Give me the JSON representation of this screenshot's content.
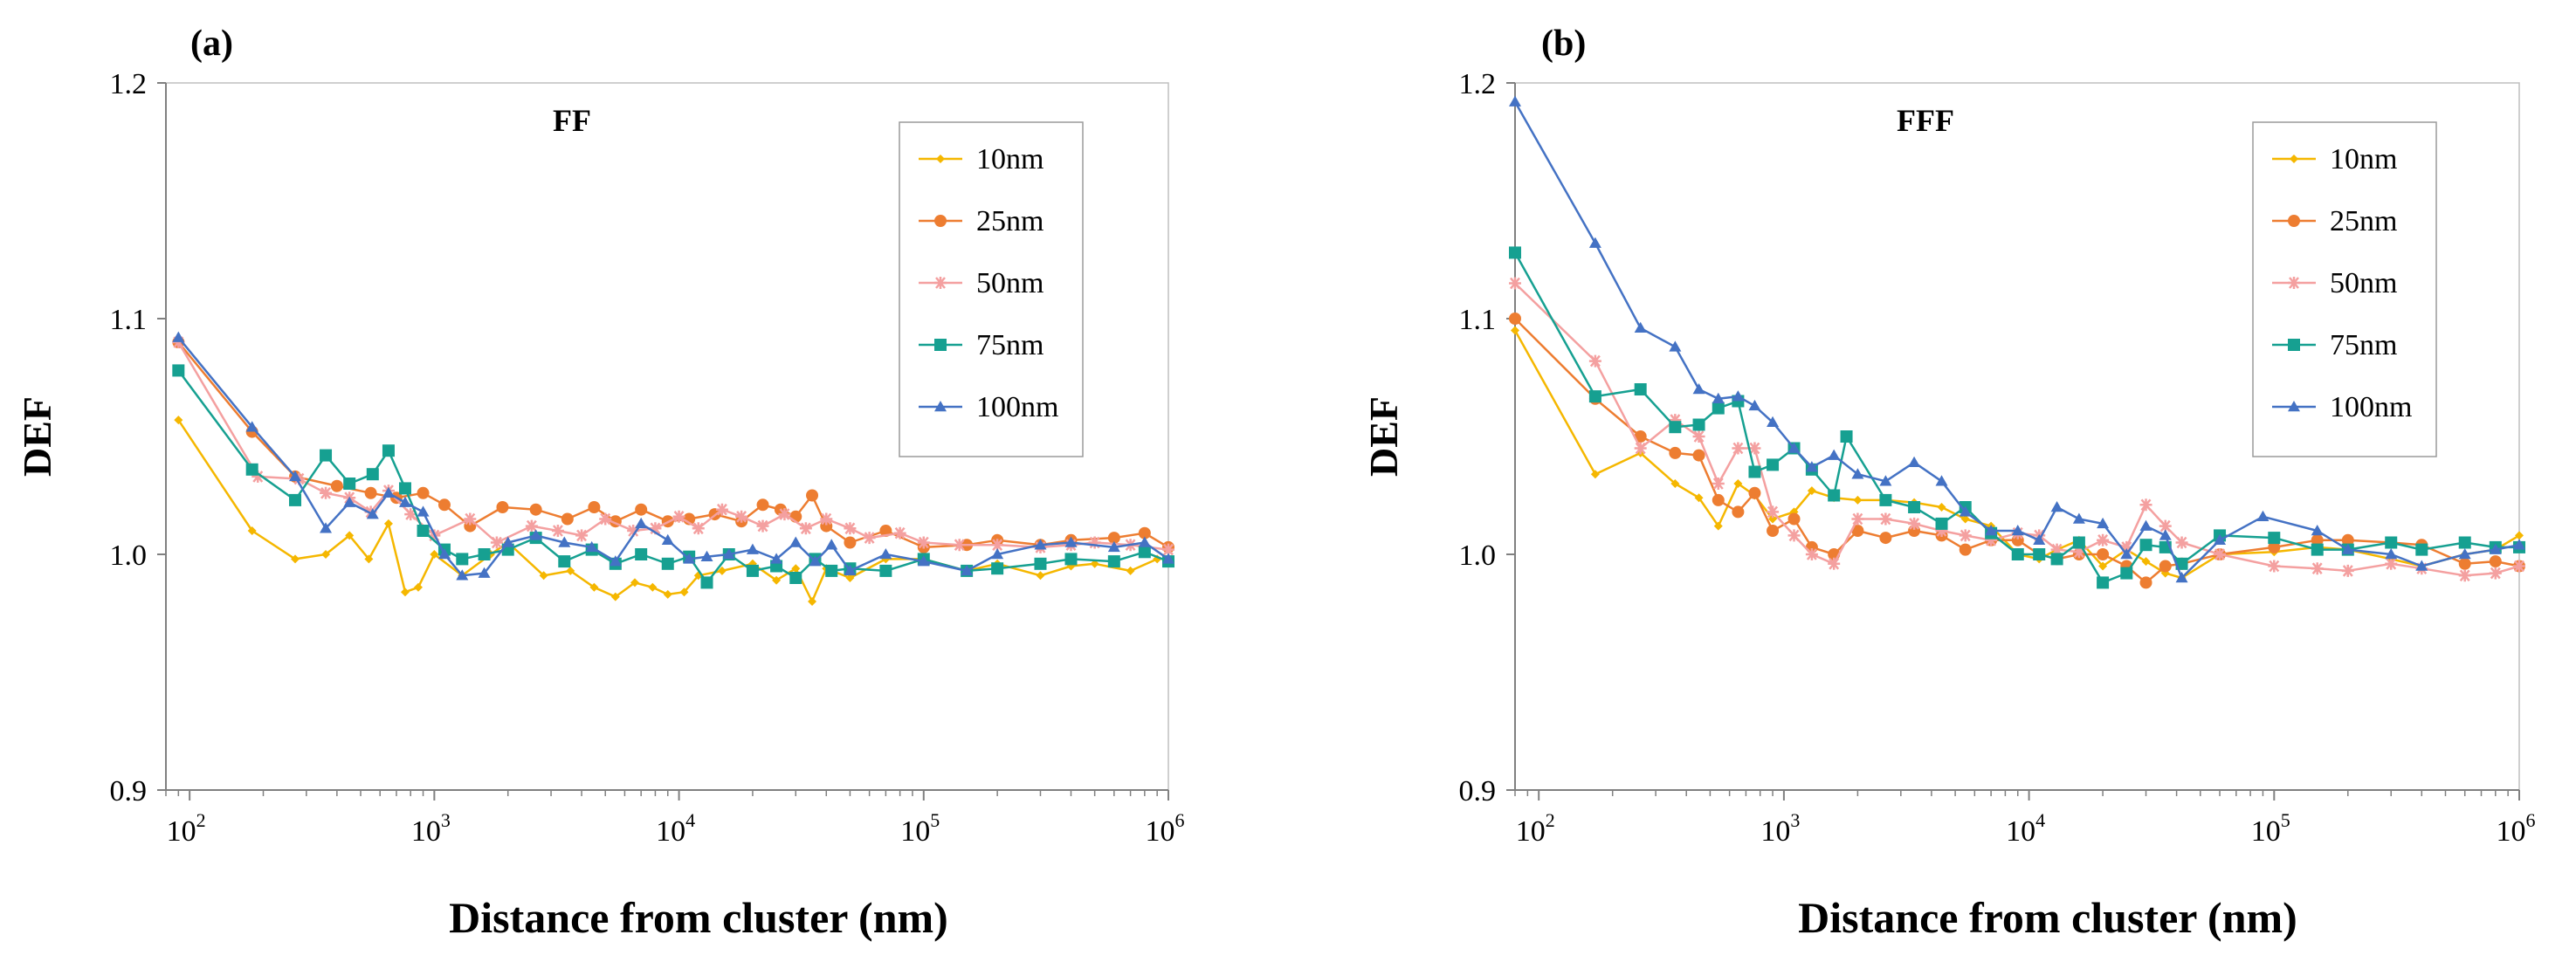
{
  "chart_data": [
    {
      "type": "line",
      "panel_label": "(a)",
      "title": "FF",
      "xlabel": "Distance from cluster (nm)",
      "ylabel": "DEF",
      "xscale": "log",
      "xlim": [
        80,
        1000000
      ],
      "ylim": [
        0.9,
        1.2
      ],
      "yticks": [
        "0.9",
        "1.0",
        "1.1",
        "1.2"
      ],
      "xticks": [
        {
          "base": "10",
          "exp": "2"
        },
        {
          "base": "10",
          "exp": "3"
        },
        {
          "base": "10",
          "exp": "4"
        },
        {
          "base": "10",
          "exp": "5"
        },
        {
          "base": "10",
          "exp": "6"
        }
      ],
      "legend_position": "top-right",
      "series": [
        {
          "name": "10nm",
          "color": "#f5b700",
          "marker": "diamond",
          "x": [
            90,
            180,
            270,
            360,
            450,
            540,
            650,
            760,
            860,
            1000,
            1300,
            1700,
            2000,
            2800,
            3600,
            4500,
            5500,
            6600,
            7800,
            9000,
            10500,
            12000,
            15000,
            20000,
            25000,
            30000,
            35000,
            40000,
            50000,
            70000,
            100000,
            150000,
            200000,
            300000,
            400000,
            500000,
            700000,
            900000
          ],
          "y": [
            1.057,
            1.01,
            0.998,
            1.0,
            1.008,
            0.998,
            1.013,
            0.984,
            0.986,
            1.0,
            0.991,
            1.0,
            1.005,
            0.991,
            0.993,
            0.986,
            0.982,
            0.988,
            0.986,
            0.983,
            0.984,
            0.991,
            0.993,
            0.996,
            0.989,
            0.994,
            0.98,
            0.994,
            0.99,
            0.998,
            0.998,
            0.993,
            0.996,
            0.991,
            0.995,
            0.996,
            0.993,
            0.998
          ]
        },
        {
          "name": "25nm",
          "color": "#ed7d31",
          "marker": "circle",
          "x": [
            90,
            180,
            270,
            400,
            550,
            700,
            900,
            1100,
            1400,
            1900,
            2600,
            3500,
            4500,
            5500,
            7000,
            9000,
            11000,
            14000,
            18000,
            22000,
            26000,
            30000,
            35000,
            40000,
            50000,
            70000,
            100000,
            150000,
            200000,
            300000,
            400000,
            600000,
            800000,
            1000000
          ],
          "y": [
            1.09,
            1.052,
            1.033,
            1.029,
            1.026,
            1.024,
            1.026,
            1.021,
            1.012,
            1.02,
            1.019,
            1.015,
            1.02,
            1.014,
            1.019,
            1.014,
            1.015,
            1.017,
            1.014,
            1.021,
            1.019,
            1.016,
            1.025,
            1.012,
            1.005,
            1.01,
            1.003,
            1.004,
            1.006,
            1.004,
            1.006,
            1.007,
            1.009,
            1.003
          ]
        },
        {
          "name": "50nm",
          "color": "#f4a0a0",
          "marker": "star",
          "x": [
            90,
            190,
            280,
            360,
            450,
            550,
            650,
            800,
            1000,
            1400,
            1800,
            2500,
            3200,
            4000,
            5000,
            6500,
            8000,
            10000,
            12000,
            15000,
            18000,
            22000,
            27000,
            33000,
            40000,
            50000,
            60000,
            80000,
            100000,
            140000,
            200000,
            300000,
            400000,
            500000,
            700000,
            1000000
          ],
          "y": [
            1.09,
            1.033,
            1.032,
            1.026,
            1.024,
            1.018,
            1.027,
            1.017,
            1.008,
            1.015,
            1.005,
            1.012,
            1.01,
            1.008,
            1.015,
            1.01,
            1.011,
            1.016,
            1.011,
            1.019,
            1.016,
            1.012,
            1.017,
            1.011,
            1.015,
            1.011,
            1.007,
            1.009,
            1.005,
            1.004,
            1.004,
            1.003,
            1.004,
            1.005,
            1.004,
            1.002
          ]
        },
        {
          "name": "75nm",
          "color": "#16a091",
          "marker": "square",
          "x": [
            90,
            180,
            270,
            360,
            450,
            560,
            650,
            760,
            900,
            1100,
            1300,
            1600,
            2000,
            2600,
            3400,
            4400,
            5500,
            7000,
            9000,
            11000,
            13000,
            16000,
            20000,
            25000,
            30000,
            36000,
            42000,
            50000,
            70000,
            100000,
            150000,
            200000,
            300000,
            400000,
            600000,
            800000,
            1000000
          ],
          "y": [
            1.078,
            1.036,
            1.023,
            1.042,
            1.03,
            1.034,
            1.044,
            1.028,
            1.01,
            1.002,
            0.998,
            1.0,
            1.002,
            1.007,
            0.997,
            1.002,
            0.996,
            1.0,
            0.996,
            0.999,
            0.988,
            1.0,
            0.993,
            0.995,
            0.99,
            0.998,
            0.993,
            0.994,
            0.993,
            0.998,
            0.993,
            0.994,
            0.996,
            0.998,
            0.997,
            1.001,
            0.997
          ]
        },
        {
          "name": "100nm",
          "color": "#4472c4",
          "marker": "triangle",
          "x": [
            90,
            180,
            270,
            360,
            450,
            560,
            650,
            760,
            900,
            1100,
            1300,
            1600,
            2000,
            2600,
            3400,
            4400,
            5500,
            7000,
            9000,
            11000,
            13000,
            16000,
            20000,
            25000,
            30000,
            36000,
            42000,
            50000,
            70000,
            100000,
            150000,
            200000,
            300000,
            400000,
            600000,
            800000,
            1000000
          ],
          "y": [
            1.092,
            1.054,
            1.033,
            1.011,
            1.022,
            1.017,
            1.026,
            1.022,
            1.018,
            1.0,
            0.991,
            0.992,
            1.005,
            1.008,
            1.005,
            1.003,
            0.997,
            1.013,
            1.006,
            0.998,
            0.999,
            1.0,
            1.002,
            0.998,
            1.005,
            0.997,
            1.004,
            0.993,
            1.0,
            0.997,
            0.993,
            1.0,
            1.004,
            1.005,
            1.003,
            1.005,
            0.998
          ]
        }
      ]
    },
    {
      "type": "line",
      "panel_label": "(b)",
      "title": "FFF",
      "xlabel": "Distance from cluster (nm)",
      "ylabel": "DEF",
      "xscale": "log",
      "xlim": [
        80,
        1000000
      ],
      "ylim": [
        0.9,
        1.2
      ],
      "yticks": [
        "0.9",
        "1.0",
        "1.1",
        "1.2"
      ],
      "xticks": [
        {
          "base": "10",
          "exp": "2"
        },
        {
          "base": "10",
          "exp": "3"
        },
        {
          "base": "10",
          "exp": "4"
        },
        {
          "base": "10",
          "exp": "5"
        },
        {
          "base": "10",
          "exp": "6"
        }
      ],
      "legend_position": "top-right",
      "series": [
        {
          "name": "10nm",
          "color": "#f5b700",
          "marker": "diamond",
          "x": [
            80,
            170,
            260,
            360,
            450,
            540,
            650,
            760,
            900,
            1100,
            1300,
            1600,
            2000,
            2600,
            3400,
            4400,
            5500,
            7000,
            9000,
            11000,
            13000,
            16000,
            20000,
            25000,
            30000,
            36000,
            42000,
            60000,
            100000,
            150000,
            200000,
            300000,
            400000,
            600000,
            800000,
            1000000
          ],
          "y": [
            1.095,
            1.034,
            1.043,
            1.03,
            1.024,
            1.012,
            1.03,
            1.025,
            1.015,
            1.018,
            1.027,
            1.024,
            1.023,
            1.023,
            1.022,
            1.02,
            1.015,
            1.012,
            1.0,
            0.998,
            1.002,
            1.006,
            0.995,
            1.002,
            0.997,
            0.992,
            0.99,
            1.0,
            1.001,
            1.003,
            1.002,
            0.998,
            0.995,
            1.0,
            1.002,
            1.008
          ]
        },
        {
          "name": "25nm",
          "color": "#ed7d31",
          "marker": "circle",
          "x": [
            80,
            170,
            260,
            360,
            450,
            540,
            650,
            760,
            900,
            1100,
            1300,
            1600,
            2000,
            2600,
            3400,
            4400,
            5500,
            7000,
            9000,
            11000,
            13000,
            16000,
            20000,
            25000,
            30000,
            36000,
            42000,
            60000,
            100000,
            150000,
            200000,
            300000,
            400000,
            600000,
            800000,
            1000000
          ],
          "y": [
            1.1,
            1.066,
            1.05,
            1.043,
            1.042,
            1.023,
            1.018,
            1.026,
            1.01,
            1.015,
            1.003,
            1.0,
            1.01,
            1.007,
            1.01,
            1.008,
            1.002,
            1.006,
            1.006,
            1.0,
            0.998,
            1.0,
            1.0,
            0.995,
            0.988,
            0.995,
            0.996,
            1.0,
            1.003,
            1.006,
            1.006,
            1.005,
            1.004,
            0.996,
            0.997,
            0.995
          ]
        },
        {
          "name": "50nm",
          "color": "#f4a0a0",
          "marker": "star",
          "x": [
            80,
            170,
            260,
            360,
            450,
            540,
            650,
            760,
            900,
            1100,
            1300,
            1600,
            2000,
            2600,
            3400,
            4400,
            5500,
            7000,
            9000,
            11000,
            13000,
            16000,
            20000,
            25000,
            30000,
            36000,
            42000,
            60000,
            100000,
            150000,
            200000,
            300000,
            400000,
            600000,
            800000,
            1000000
          ],
          "y": [
            1.115,
            1.082,
            1.045,
            1.057,
            1.05,
            1.03,
            1.045,
            1.045,
            1.018,
            1.008,
            1.0,
            0.996,
            1.015,
            1.015,
            1.013,
            1.01,
            1.008,
            1.006,
            1.009,
            1.008,
            1.002,
            1.001,
            1.006,
            1.003,
            1.021,
            1.012,
            1.005,
            1.0,
            0.995,
            0.994,
            0.993,
            0.996,
            0.994,
            0.991,
            0.992,
            0.995
          ]
        },
        {
          "name": "75nm",
          "color": "#16a091",
          "marker": "square",
          "x": [
            80,
            170,
            260,
            360,
            450,
            540,
            650,
            760,
            900,
            1100,
            1300,
            1600,
            1800,
            2600,
            3400,
            4400,
            5500,
            7000,
            9000,
            11000,
            13000,
            16000,
            20000,
            25000,
            30000,
            36000,
            42000,
            60000,
            100000,
            150000,
            200000,
            300000,
            400000,
            600000,
            800000,
            1000000
          ],
          "y": [
            1.128,
            1.067,
            1.07,
            1.054,
            1.055,
            1.062,
            1.065,
            1.035,
            1.038,
            1.045,
            1.036,
            1.025,
            1.05,
            1.023,
            1.02,
            1.013,
            1.02,
            1.009,
            1.0,
            1.0,
            0.998,
            1.005,
            0.988,
            0.992,
            1.004,
            1.003,
            0.996,
            1.008,
            1.007,
            1.002,
            1.002,
            1.005,
            1.002,
            1.005,
            1.003,
            1.003
          ]
        },
        {
          "name": "100nm",
          "color": "#4472c4",
          "marker": "triangle",
          "x": [
            80,
            170,
            260,
            360,
            450,
            540,
            650,
            760,
            900,
            1100,
            1300,
            1600,
            2000,
            2600,
            3400,
            4400,
            5500,
            7000,
            9000,
            11000,
            13000,
            16000,
            20000,
            25000,
            30000,
            36000,
            42000,
            60000,
            90000,
            150000,
            200000,
            300000,
            400000,
            600000,
            800000,
            1000000
          ],
          "y": [
            1.192,
            1.132,
            1.096,
            1.088,
            1.07,
            1.066,
            1.067,
            1.063,
            1.056,
            1.045,
            1.037,
            1.042,
            1.034,
            1.031,
            1.039,
            1.031,
            1.018,
            1.01,
            1.01,
            1.006,
            1.02,
            1.015,
            1.013,
            1.0,
            1.012,
            1.008,
            0.99,
            1.006,
            1.016,
            1.01,
            1.002,
            1.0,
            0.995,
            1.0,
            1.002,
            1.004
          ]
        }
      ]
    }
  ]
}
